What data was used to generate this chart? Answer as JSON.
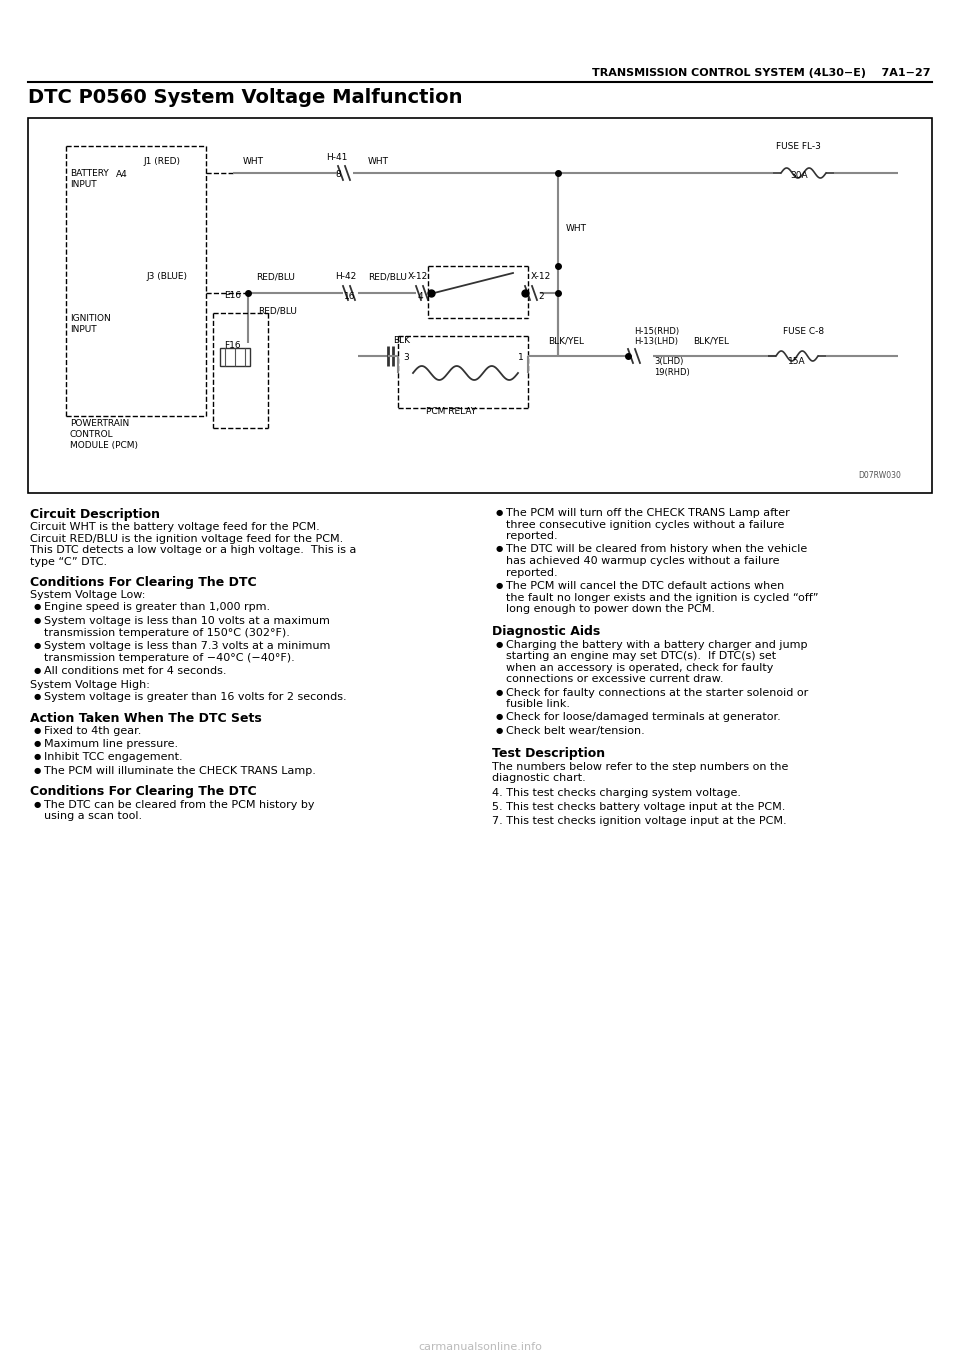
{
  "page_header": "TRANSMISSION CONTROL SYSTEM (4L30−E)    7A1−27",
  "main_title": "DTC P0560 System Voltage Malfunction",
  "diagram_label": "D07RW030",
  "section1_title": "Circuit Description",
  "section1_text": "Circuit WHT is the battery voltage feed for the PCM.\nCircuit RED/BLU is the ignition voltage feed for the PCM.\nThis DTC detects a low voltage or a high voltage.  This is a\ntype “C” DTC.",
  "section2_title": "Conditions For Clearing The DTC",
  "section2_text1": "System Voltage Low:",
  "section2_bullets1": [
    "Engine speed is greater than 1,000 rpm.",
    "System voltage is less than 10 volts at a maximum\ntransmission temperature of 150°C (302°F).",
    "System voltage is less than 7.3 volts at a minimum\ntransmission temperature of −40°C (−40°F).",
    "All conditions met for 4 seconds."
  ],
  "section2_text2": "System Voltage High:",
  "section2_bullets2": [
    "System voltage is greater than 16 volts for 2 seconds."
  ],
  "section3_title": "Action Taken When The DTC Sets",
  "section3_bullets": [
    "Fixed to 4th gear.",
    "Maximum line pressure.",
    "Inhibit TCC engagement.",
    "The PCM will illuminate the CHECK TRANS Lamp."
  ],
  "section4_title": "Conditions For Clearing The DTC",
  "section4_bullets": [
    "The DTC can be cleared from the PCM history by\nusing a scan tool."
  ],
  "section5_bullets": [
    "The PCM will turn off the CHECK TRANS Lamp after\nthree consecutive ignition cycles without a failure\nreported.",
    "The DTC will be cleared from history when the vehicle\nhas achieved 40 warmup cycles without a failure\nreported.",
    "The PCM will cancel the DTC default actions when\nthe fault no longer exists and the ignition is cycled “off”\nlong enough to power down the PCM."
  ],
  "section6_title": "Diagnostic Aids",
  "section6_bullets": [
    "Charging the battery with a battery charger and jump\nstarting an engine may set DTC(s).  If DTC(s) set\nwhen an accessory is operated, check for faulty\nconnections or excessive current draw.",
    "Check for faulty connections at the starter solenoid or\nfusible link.",
    "Check for loose/damaged terminals at generator.",
    "Check belt wear/tension."
  ],
  "section7_title": "Test Description",
  "section7_text": "The numbers below refer to the step numbers on the\ndiagnostic chart.",
  "section7_items": [
    "4. This test checks charging system voltage.",
    "5. This test checks battery voltage input at the PCM.",
    "7. This test checks ignition voltage input at the PCM."
  ],
  "watermark": "carmanualsonline.info",
  "bg_color": "#ffffff",
  "text_color": "#000000"
}
